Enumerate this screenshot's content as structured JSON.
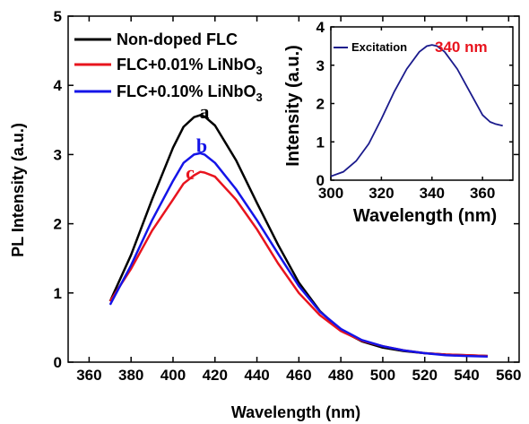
{
  "colors": {
    "non_doped": "#000000",
    "doped_001": "#e8141e",
    "doped_010": "#1414e8",
    "excitation": "#1a1a8c",
    "annotation_red": "#e8141e"
  },
  "chart_data": [
    {
      "type": "line",
      "xlabel": "Wavelength (nm)",
      "ylabel": "PL Intensity (a.u.)",
      "xlim": [
        350,
        565
      ],
      "ylim": [
        0,
        5
      ],
      "xticks": [
        "360",
        "380",
        "400",
        "420",
        "440",
        "460",
        "480",
        "500",
        "520",
        "540",
        "560"
      ],
      "yticks": [
        "0",
        "1",
        "2",
        "3",
        "4",
        "5"
      ],
      "grid": false,
      "legend_position": "top-left",
      "legend": {
        "non_doped": "Non-doped FLC",
        "doped_001_main": "FLC+0.01% LiNbO",
        "doped_010_main": "FLC+0.10% LiNbO",
        "subscript": "3"
      },
      "curve_labels": {
        "a": "a",
        "b": "b",
        "c": "c"
      },
      "x": [
        370,
        380,
        390,
        400,
        405,
        410,
        413,
        415,
        420,
        430,
        440,
        450,
        460,
        470,
        480,
        490,
        500,
        510,
        520,
        530,
        540,
        550
      ],
      "series": [
        {
          "name": "Non-doped FLC",
          "values": [
            0.88,
            1.55,
            2.35,
            3.1,
            3.4,
            3.54,
            3.57,
            3.55,
            3.42,
            2.92,
            2.3,
            1.7,
            1.15,
            0.74,
            0.46,
            0.3,
            0.21,
            0.16,
            0.13,
            0.11,
            0.1,
            0.09
          ]
        },
        {
          "name": "FLC+0.01% LiNbO3",
          "values": [
            0.88,
            1.35,
            1.9,
            2.35,
            2.58,
            2.7,
            2.75,
            2.74,
            2.68,
            2.35,
            1.92,
            1.43,
            1.0,
            0.68,
            0.45,
            0.31,
            0.23,
            0.17,
            0.13,
            0.11,
            0.1,
            0.09
          ]
        },
        {
          "name": "FLC+0.10% LiNbO3",
          "values": [
            0.83,
            1.4,
            2.05,
            2.62,
            2.88,
            3.0,
            3.02,
            3.0,
            2.88,
            2.5,
            2.05,
            1.57,
            1.1,
            0.73,
            0.48,
            0.32,
            0.23,
            0.17,
            0.13,
            0.1,
            0.09,
            0.08
          ]
        }
      ]
    },
    {
      "type": "line",
      "xlabel": "Wavelength (nm)",
      "ylabel": "Intensity (a.u.)",
      "xlim": [
        300,
        372
      ],
      "ylim": [
        0,
        4
      ],
      "xticks": [
        "300",
        "320",
        "340",
        "360"
      ],
      "yticks": [
        "0",
        "1",
        "2",
        "3",
        "4"
      ],
      "grid": false,
      "legend_position": "top-left",
      "legend": {
        "excitation": "Excitation"
      },
      "annotation": "340 nm",
      "x": [
        300,
        305,
        310,
        315,
        320,
        325,
        330,
        335,
        338,
        340,
        342,
        345,
        350,
        355,
        360,
        363,
        365,
        368
      ],
      "series": [
        {
          "name": "Excitation",
          "values": [
            0.1,
            0.22,
            0.5,
            0.95,
            1.6,
            2.3,
            2.9,
            3.35,
            3.5,
            3.53,
            3.5,
            3.35,
            2.9,
            2.3,
            1.7,
            1.52,
            1.47,
            1.42
          ]
        }
      ]
    }
  ]
}
